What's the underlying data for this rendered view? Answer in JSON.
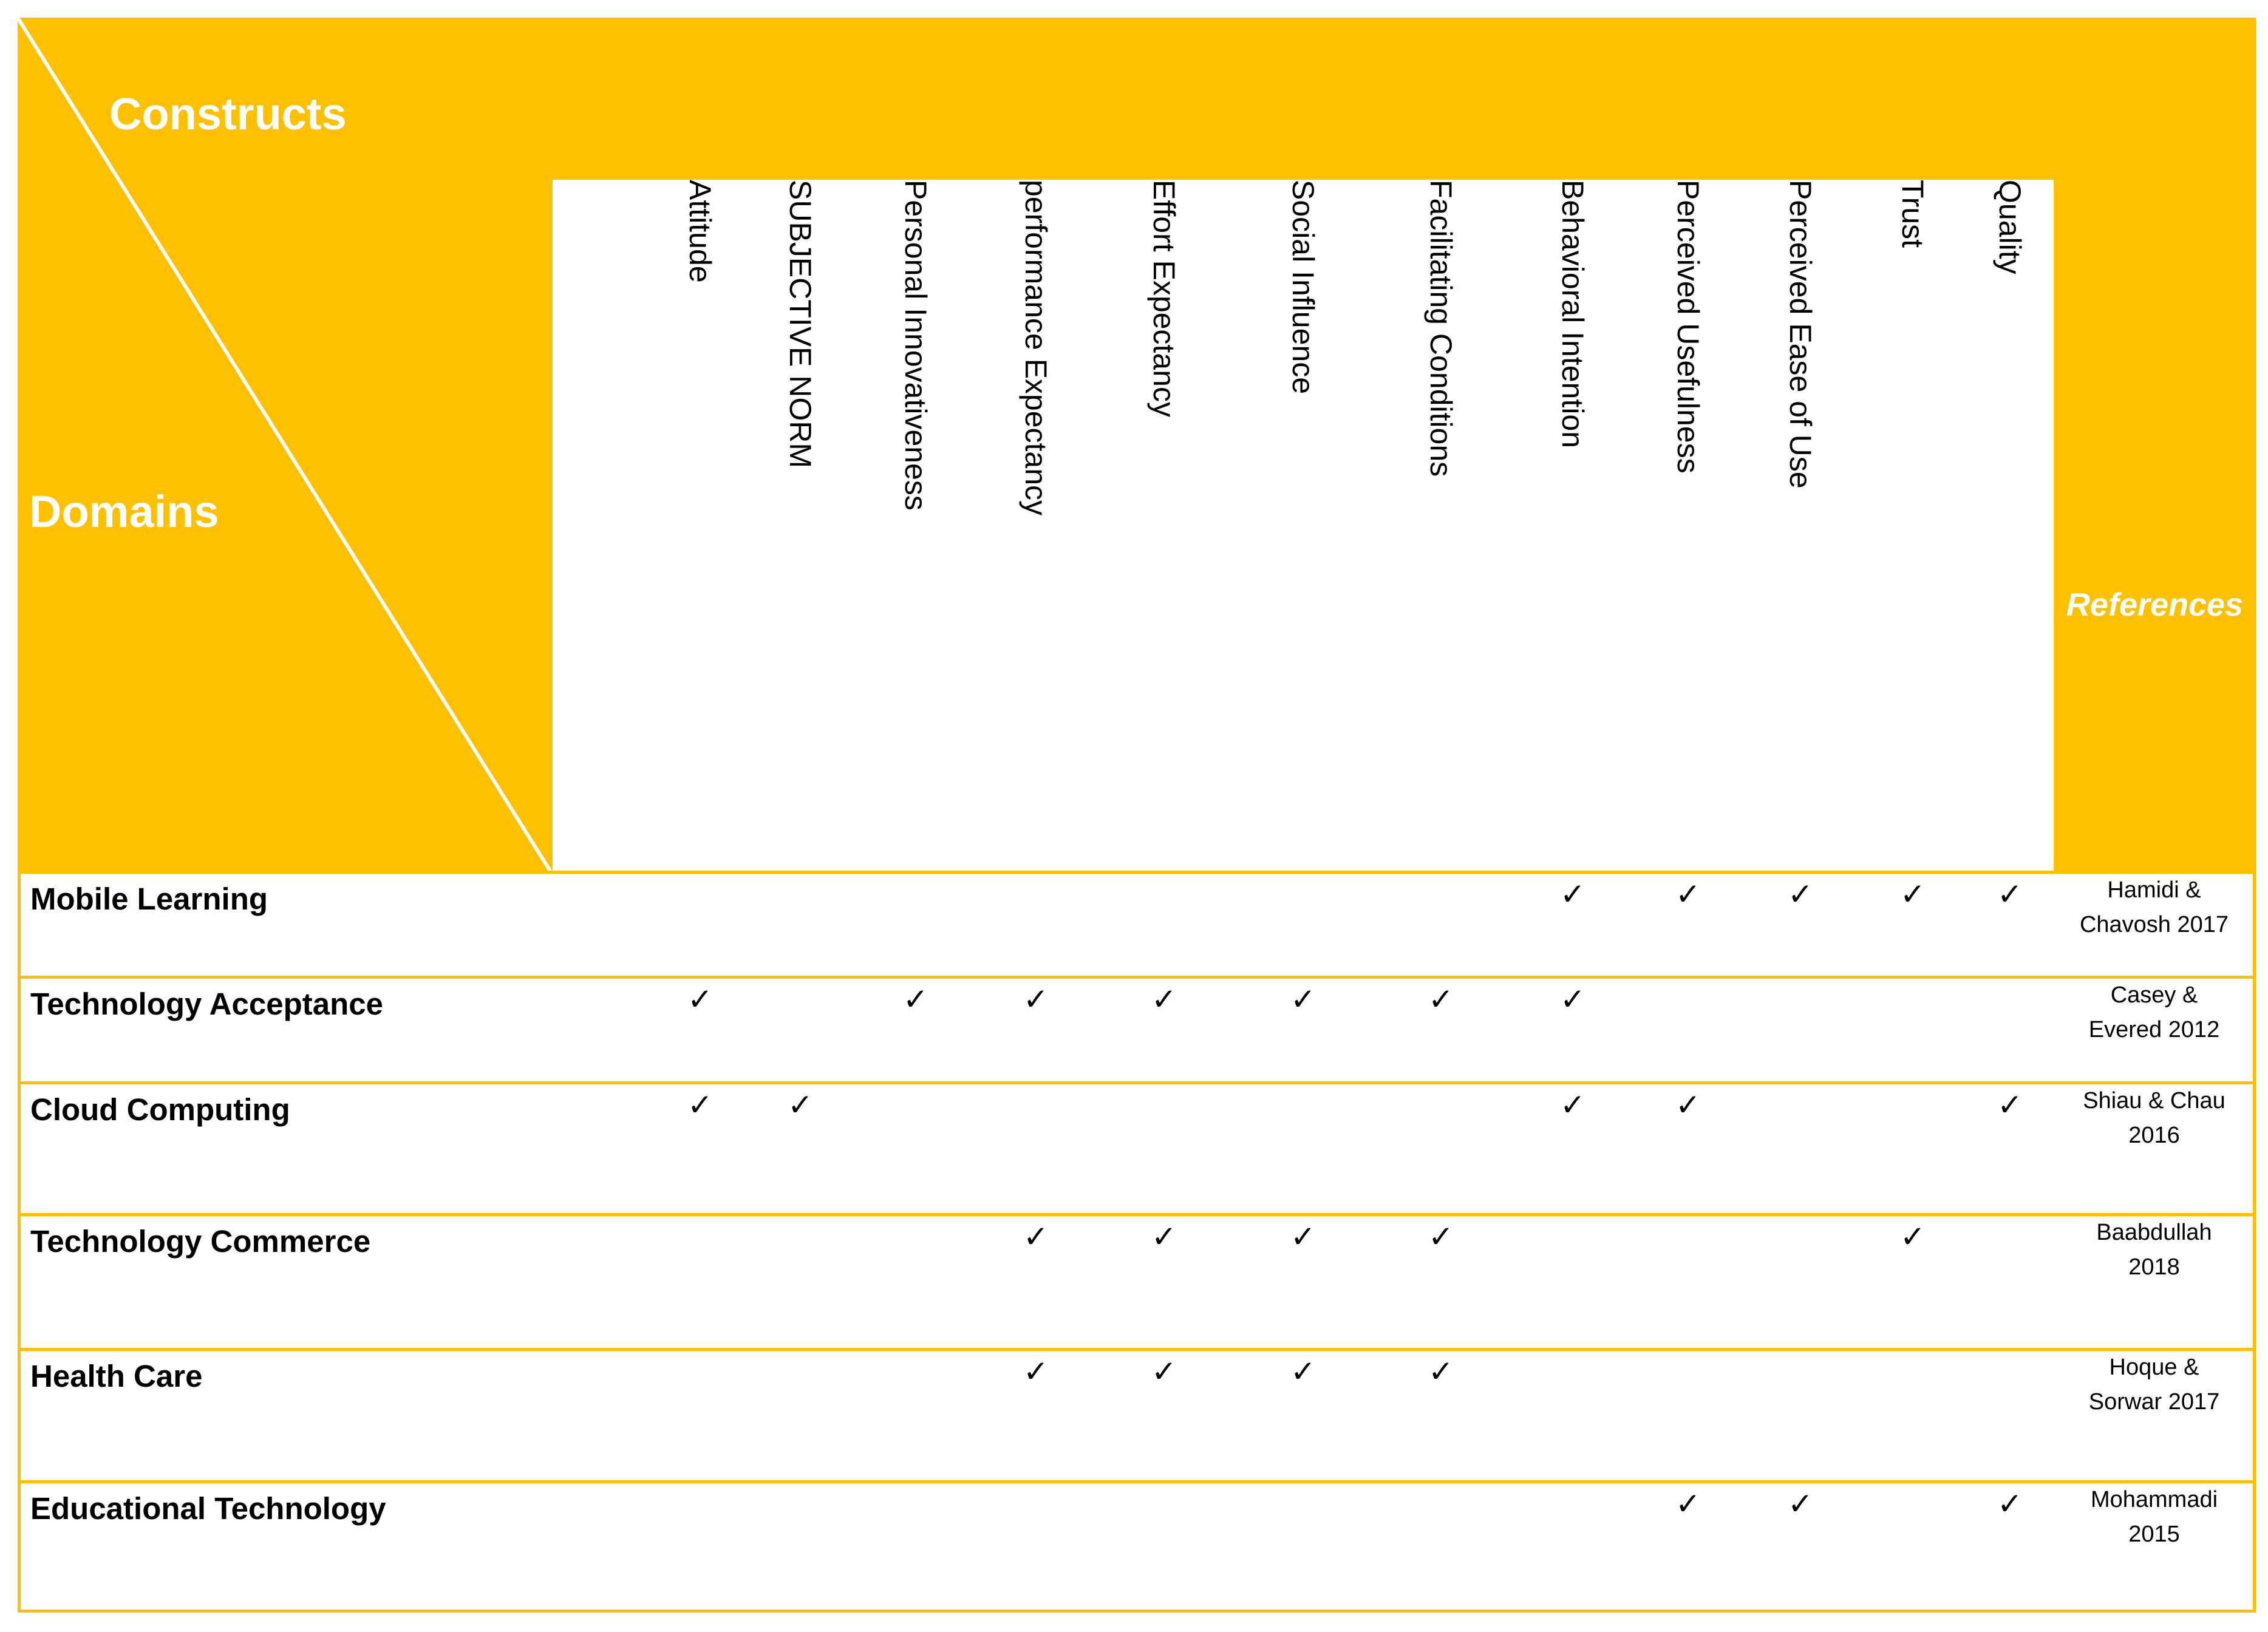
{
  "header": {
    "constructs_label": "Constructs",
    "domains_label": "Domains",
    "references_label": "References"
  },
  "colors": {
    "accent": "#ffc000",
    "header_text": "#ffffff"
  },
  "columns": [
    "Attitude",
    "SUBJECTIVE NORM",
    "Personal Innovativeness",
    "performance Expectancy",
    "Effort Expectancy",
    "Social Influence",
    "Facilitating Conditions",
    "Behavioral Intention",
    "Perceived Usefulness",
    "Perceived Ease of Use",
    "Trust",
    "Quality"
  ],
  "check_mark": "✓",
  "rows": [
    {
      "domain": "Mobile Learning",
      "ref_line1": "Hamidi &",
      "ref_line2": "Chavosh 2017",
      "checks": [
        false,
        false,
        false,
        false,
        false,
        false,
        false,
        true,
        true,
        true,
        true,
        true
      ]
    },
    {
      "domain": "Technology Acceptance",
      "ref_line1": "Casey &",
      "ref_line2": "Evered 2012",
      "checks": [
        true,
        false,
        true,
        true,
        true,
        true,
        true,
        true,
        false,
        false,
        false,
        false
      ]
    },
    {
      "domain": "Cloud Computing",
      "ref_line1": "Shiau & Chau",
      "ref_line2": "2016",
      "checks": [
        true,
        true,
        false,
        false,
        false,
        false,
        false,
        true,
        true,
        false,
        false,
        true
      ]
    },
    {
      "domain": "Technology Commerce",
      "ref_line1": "Baabdullah",
      "ref_line2": "2018",
      "checks": [
        false,
        false,
        false,
        true,
        true,
        true,
        true,
        false,
        false,
        false,
        true,
        false
      ]
    },
    {
      "domain": "Health Care",
      "ref_line1": "Hoque &",
      "ref_line2": "Sorwar 2017",
      "checks": [
        false,
        false,
        false,
        true,
        true,
        true,
        true,
        false,
        false,
        false,
        false,
        false
      ]
    },
    {
      "domain": "Educational Technology",
      "ref_line1": "Mohammadi",
      "ref_line2": "2015",
      "checks": [
        false,
        false,
        false,
        false,
        false,
        false,
        false,
        false,
        true,
        true,
        false,
        true
      ]
    }
  ]
}
